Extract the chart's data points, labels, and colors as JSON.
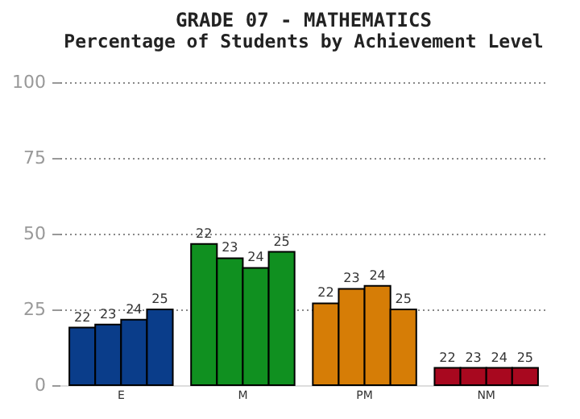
{
  "chart_data": {
    "type": "bar",
    "title": "GRADE 07 - MATHEMATICS",
    "subtitle": "Percentage of Students by Achievement Level",
    "categories": [
      "E",
      "M",
      "PM",
      "NM"
    ],
    "series": [
      {
        "name": "22",
        "colors": [
          "#0a3d8a",
          "#109020",
          "#d67d06",
          "#a8081f"
        ],
        "values": [
          19,
          46.6,
          27,
          5.7
        ]
      },
      {
        "name": "23",
        "colors": [
          "#0a3d8a",
          "#109020",
          "#d67d06",
          "#a8081f"
        ],
        "values": [
          20,
          41.9,
          31.8,
          5.7
        ]
      },
      {
        "name": "24",
        "colors": [
          "#0a3d8a",
          "#109020",
          "#d67d06",
          "#a8081f"
        ],
        "values": [
          21.6,
          38.7,
          32.8,
          5.7
        ]
      },
      {
        "name": "25",
        "colors": [
          "#0a3d8a",
          "#109020",
          "#d67d06",
          "#a8081f"
        ],
        "values": [
          25,
          44,
          25,
          5.7
        ]
      }
    ],
    "ylim": [
      0,
      100
    ],
    "yticks": [
      0,
      25,
      50,
      75,
      100
    ],
    "grid": "y"
  }
}
